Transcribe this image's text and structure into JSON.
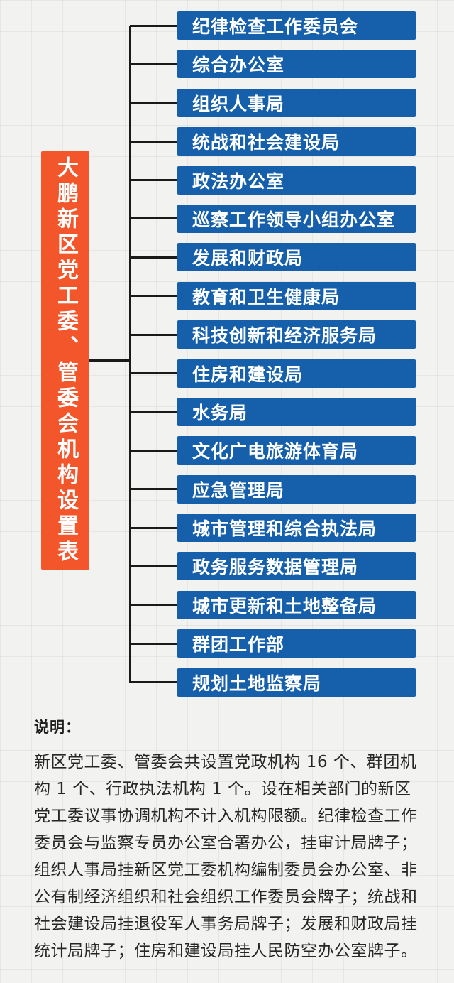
{
  "root": {
    "title": "大鹏新区党工委、管委会机构设置表"
  },
  "departments": [
    "纪律检查工作委员会",
    "综合办公室",
    "组织人事局",
    "统战和社会建设局",
    "政法办公室",
    "巡察工作领导小组办公室",
    "发展和财政局",
    "教育和卫生健康局",
    "科技创新和经济服务局",
    "住房和建设局",
    "水务局",
    "文化广电旅游体育局",
    "应急管理局",
    "城市管理和综合执法局",
    "政务服务数据管理局",
    "城市更新和土地整备局",
    "群团工作部",
    "规划土地监察局"
  ],
  "notes": {
    "heading": "说明：",
    "body": "新区党工委、管委会共设置党政机构 16 个、群团机构 1 个、行政执法机构 1 个。设在相关部门的新区党工委议事协调机构不计入机构限额。纪律检查工作委员会与监察专员办公室合署办公，挂审计局牌子；组织人事局挂新区党工委机构编制委员会办公室、非公有制经济组织和社会组织工作委员会牌子；统战和社会建设局挂退役军人事务局牌子；发展和财政局挂统计局牌子；住房和建设局挂人民防空办公室牌子。"
  },
  "colors": {
    "box_blue": "#165FAB",
    "root_orange": "#F4562C",
    "connector_line": "#1A1A1A",
    "background": "#F2F2F0",
    "note_text": "#262626"
  }
}
